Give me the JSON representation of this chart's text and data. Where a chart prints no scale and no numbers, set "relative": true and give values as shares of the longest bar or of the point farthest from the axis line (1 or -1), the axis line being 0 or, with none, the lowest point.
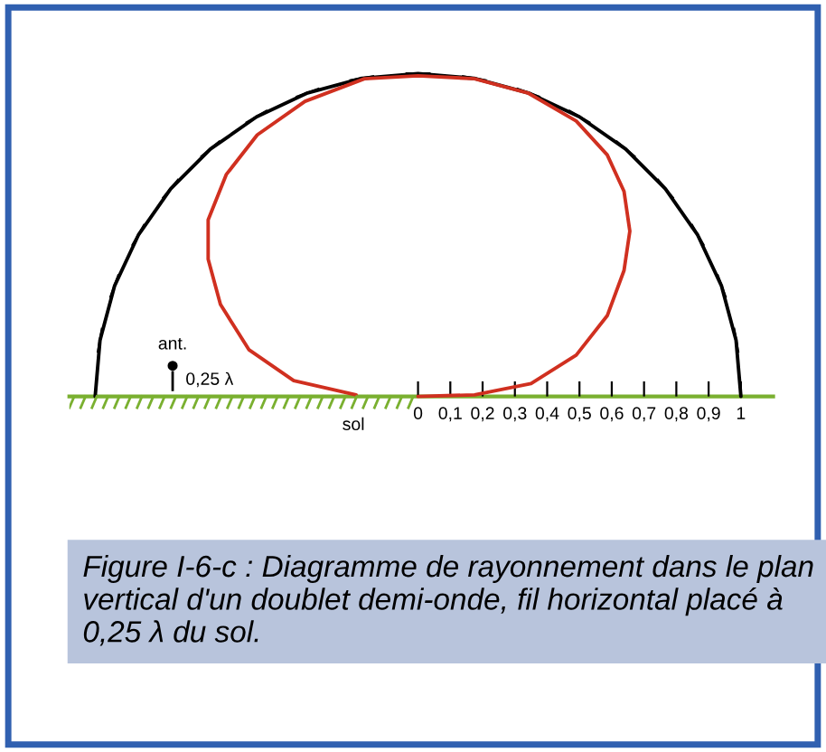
{
  "chart_data": {
    "type": "line",
    "relative": true,
    "series": [
      {
        "color": "#000000",
        "x": [
          1.0,
          0.985,
          0.94,
          0.866,
          0.766,
          0.643,
          0.5,
          0.342,
          0.174,
          0.0,
          -0.174,
          -0.342,
          -0.5,
          -0.643,
          -0.766,
          -0.866,
          -0.94,
          -0.985,
          -1.0
        ],
        "values": [
          0.0,
          0.174,
          0.342,
          0.5,
          0.643,
          0.766,
          0.866,
          0.94,
          0.985,
          1.0,
          0.985,
          0.94,
          0.866,
          0.766,
          0.643,
          0.5,
          0.342,
          0.174,
          0.0
        ]
      },
      {
        "color": "#d03020",
        "x": [
          0.0,
          0.175,
          0.35,
          0.49,
          0.586,
          0.638,
          0.656,
          0.638,
          0.586,
          0.49,
          0.34,
          0.175,
          0.0,
          -0.166,
          -0.35,
          -0.498,
          -0.594,
          -0.65,
          -0.65,
          -0.612,
          -0.524,
          -0.385,
          -0.192
        ],
        "values": [
          0.0,
          0.005,
          0.04,
          0.128,
          0.25,
          0.39,
          0.512,
          0.635,
          0.748,
          0.853,
          0.94,
          0.984,
          0.993,
          0.984,
          0.914,
          0.81,
          0.687,
          0.547,
          0.425,
          0.285,
          0.145,
          0.049,
          0.005
        ]
      }
    ],
    "xlim": [
      -1.08,
      1.1
    ],
    "xticks": [
      0,
      {
        "value": 0.1,
        "label": "0,1"
      },
      {
        "value": 0.2,
        "label": "0,2"
      },
      {
        "value": 0.3,
        "label": "0,3"
      },
      {
        "value": 0.4,
        "label": "0,4"
      },
      {
        "value": 0.5,
        "label": "0,5"
      },
      {
        "value": 0.6,
        "label": "0,6"
      },
      {
        "value": 0.7,
        "label": "0,7"
      },
      {
        "value": 0.8,
        "label": "0,8"
      },
      {
        "value": 0.9,
        "label": "0,9"
      },
      1
    ],
    "tick_labels": "x",
    "annotations": [
      "ant.",
      "0,25 λ",
      "sol",
      "Figure I-6-c : Diagramme de rayonnement dans le plan vertical d'un doublet demi-onde, fil horizontal placé à 0,25 λ du sol."
    ]
  }
}
